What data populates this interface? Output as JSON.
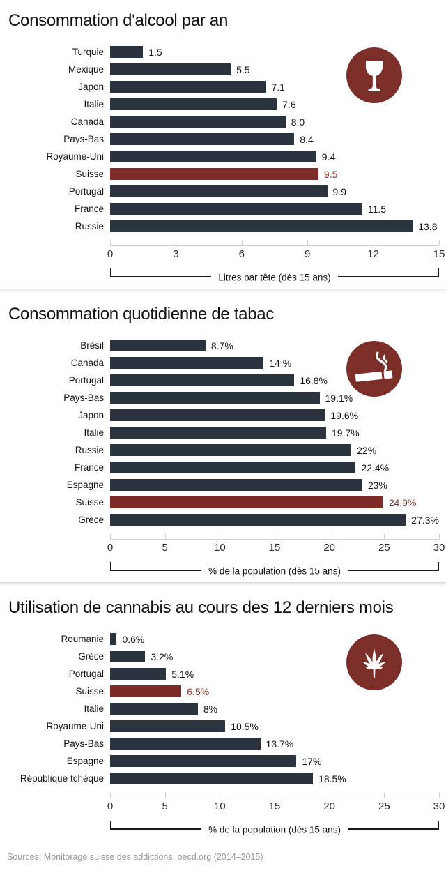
{
  "page": {
    "footer": "Sources: Monitorage suisse des addictions, oecd.org (2014–2015)"
  },
  "colors": {
    "bar": "#2b333e",
    "highlight": "#7c2b26",
    "highlight_text": "#8c322b",
    "icon_circle": "#7c2e28",
    "axis_line": "#cccccc",
    "text": "#141414"
  },
  "chart_data": [
    {
      "type": "bar",
      "orientation": "horizontal",
      "title": "Consommation d'alcool par an",
      "icon": "wine-glass",
      "xlabel": "Litres par tête (dès 15 ans)",
      "xlim": [
        0,
        15
      ],
      "xticks": [
        "0",
        "3",
        "6",
        "9",
        "12",
        "15"
      ],
      "highlight_category": "Suisse",
      "categories": [
        "Turquie",
        "Mexique",
        "Japon",
        "Italie",
        "Canada",
        "Pays-Bas",
        "Royaume-Uni",
        "Suisse",
        "Portugal",
        "France",
        "Russie"
      ],
      "values": [
        1.5,
        5.5,
        7.1,
        7.6,
        8.0,
        8.4,
        9.4,
        9.5,
        9.9,
        11.5,
        13.8
      ],
      "value_labels": [
        "1.5",
        "5.5",
        "7.1",
        "7.6",
        "8.0",
        "8.4",
        "9.4",
        "9.5",
        "9.9",
        "11.5",
        "13.8"
      ]
    },
    {
      "type": "bar",
      "orientation": "horizontal",
      "title": "Consommation quotidienne de tabac",
      "icon": "cigarette",
      "xlabel": "% de la population (dès 15 ans)",
      "xlim": [
        0,
        30
      ],
      "xticks": [
        "0",
        "5",
        "10",
        "15",
        "20",
        "25",
        "30"
      ],
      "highlight_category": "Suisse",
      "categories": [
        "Brésil",
        "Canada",
        "Portugal",
        "Pays-Bas",
        "Japon",
        "Italie",
        "Russie",
        "France",
        "Espagne",
        "Suisse",
        "Grèce"
      ],
      "values": [
        8.7,
        14,
        16.8,
        19.1,
        19.6,
        19.7,
        22,
        22.4,
        23,
        24.9,
        27.3
      ],
      "value_labels": [
        "8.7%",
        "14 %",
        "16.8%",
        "19.1%",
        "19.6%",
        "19.7%",
        "22%",
        "22.4%",
        "23%",
        "24.9%",
        "27.3%"
      ]
    },
    {
      "type": "bar",
      "orientation": "horizontal",
      "title": "Utilisation de cannabis au cours des 12 derniers mois",
      "icon": "cannabis-leaf",
      "xlabel": "% de la population (dès 15 ans)",
      "xlim": [
        0,
        30
      ],
      "xticks": [
        "0",
        "5",
        "10",
        "15",
        "20",
        "25",
        "30"
      ],
      "highlight_category": "Suisse",
      "categories": [
        "Roumanie",
        "Grèce",
        "Portugal",
        "Suisse",
        "Italie",
        "Royaume-Uni",
        "Pays-Bas",
        "Espagne",
        "République tchèque"
      ],
      "values": [
        0.6,
        3.2,
        5.1,
        6.5,
        8,
        10.5,
        13.7,
        17,
        18.5
      ],
      "value_labels": [
        "0.6%",
        "3.2%",
        "5.1%",
        "6.5%",
        "8%",
        "10.5%",
        "13.7%",
        "17%",
        "18.5%"
      ]
    }
  ]
}
